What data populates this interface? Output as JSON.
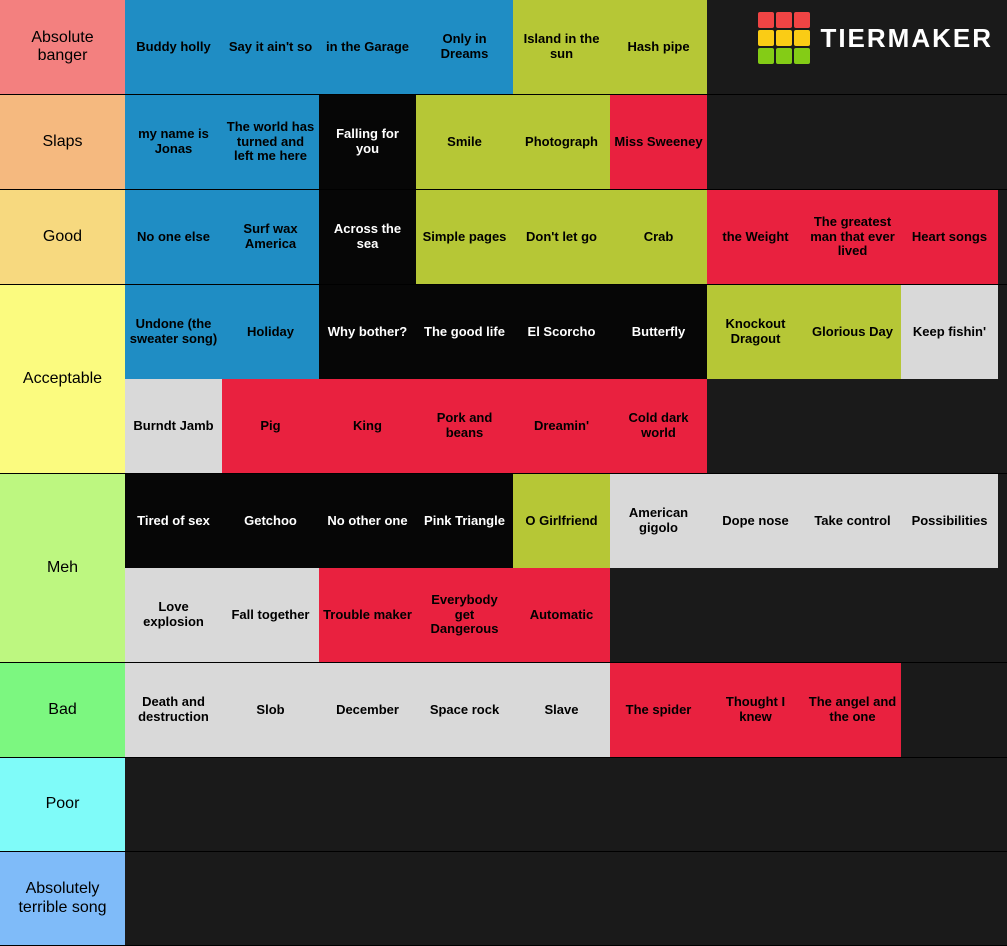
{
  "watermark": {
    "text": "TIERMAKER",
    "grid_colors": [
      "#ef4444",
      "#ef4444",
      "#ef4444",
      "#facc15",
      "#facc15",
      "#facc15",
      "#84cc16",
      "#84cc16",
      "#84cc16"
    ]
  },
  "item_colors": {
    "blue": "#1f8dc4",
    "olive": "#b6c736",
    "black": "#060606",
    "red": "#e9213f",
    "grey": "#d9d9d9"
  },
  "rows": [
    {
      "label": "Absolute banger",
      "label_color": "#f3807f",
      "items": [
        {
          "text": "Buddy holly",
          "c": "blue"
        },
        {
          "text": "Say it ain't so",
          "c": "blue"
        },
        {
          "text": "in the Garage",
          "c": "blue"
        },
        {
          "text": "Only in Dreams",
          "c": "blue"
        },
        {
          "text": "Island in the sun",
          "c": "olive"
        },
        {
          "text": "Hash pipe",
          "c": "olive"
        }
      ]
    },
    {
      "label": "Slaps",
      "label_color": "#f5b97f",
      "items": [
        {
          "text": "my name is Jonas",
          "c": "blue"
        },
        {
          "text": "The world has turned and left me here",
          "c": "blue"
        },
        {
          "text": "Falling for you",
          "c": "black"
        },
        {
          "text": "Smile",
          "c": "olive"
        },
        {
          "text": "Photograph",
          "c": "olive"
        },
        {
          "text": "Miss Sweeney",
          "c": "red"
        }
      ]
    },
    {
      "label": "Good",
      "label_color": "#f7d97f",
      "items": [
        {
          "text": "No one else",
          "c": "blue"
        },
        {
          "text": "Surf wax America",
          "c": "blue"
        },
        {
          "text": "Across the sea",
          "c": "black"
        },
        {
          "text": "Simple pages",
          "c": "olive"
        },
        {
          "text": "Don't let go",
          "c": "olive"
        },
        {
          "text": "Crab",
          "c": "olive"
        },
        {
          "text": "the Weight",
          "c": "red"
        },
        {
          "text": "The greatest man that ever lived",
          "c": "red"
        },
        {
          "text": "Heart songs",
          "c": "red"
        }
      ]
    },
    {
      "label": "Acceptable",
      "label_color": "#fbfb7f",
      "items": [
        {
          "text": "Undone (the sweater song)",
          "c": "blue"
        },
        {
          "text": "Holiday",
          "c": "blue"
        },
        {
          "text": "Why bother?",
          "c": "black"
        },
        {
          "text": "The good life",
          "c": "black"
        },
        {
          "text": "El Scorcho",
          "c": "black"
        },
        {
          "text": "Butterfly",
          "c": "black"
        },
        {
          "text": "Knockout Dragout",
          "c": "olive"
        },
        {
          "text": "Glorious Day",
          "c": "olive"
        },
        {
          "text": "Keep fishin'",
          "c": "grey"
        },
        {
          "text": "Burndt Jamb",
          "c": "grey"
        },
        {
          "text": "Pig",
          "c": "red"
        },
        {
          "text": "King",
          "c": "red"
        },
        {
          "text": "Pork and beans",
          "c": "red"
        },
        {
          "text": "Dreamin'",
          "c": "red"
        },
        {
          "text": "Cold dark world",
          "c": "red"
        }
      ]
    },
    {
      "label": "Meh",
      "label_color": "#bdf780",
      "items": [
        {
          "text": "Tired of sex",
          "c": "black"
        },
        {
          "text": "Getchoo",
          "c": "black"
        },
        {
          "text": "No other one",
          "c": "black"
        },
        {
          "text": "Pink Triangle",
          "c": "black"
        },
        {
          "text": "O Girlfriend",
          "c": "olive"
        },
        {
          "text": "American gigolo",
          "c": "grey"
        },
        {
          "text": "Dope nose",
          "c": "grey"
        },
        {
          "text": "Take control",
          "c": "grey"
        },
        {
          "text": "Possibilities",
          "c": "grey"
        },
        {
          "text": "Love explosion",
          "c": "grey"
        },
        {
          "text": "Fall together",
          "c": "grey"
        },
        {
          "text": "Trouble maker",
          "c": "red"
        },
        {
          "text": "Everybody get Dangerous",
          "c": "red"
        },
        {
          "text": "Automatic",
          "c": "red"
        }
      ]
    },
    {
      "label": "Bad",
      "label_color": "#7cf780",
      "items": [
        {
          "text": "Death and destruction",
          "c": "grey"
        },
        {
          "text": "Slob",
          "c": "grey"
        },
        {
          "text": "December",
          "c": "grey"
        },
        {
          "text": "Space rock",
          "c": "grey"
        },
        {
          "text": "Slave",
          "c": "grey"
        },
        {
          "text": "The spider",
          "c": "red"
        },
        {
          "text": "Thought I knew",
          "c": "red"
        },
        {
          "text": "The angel and the one",
          "c": "red"
        }
      ]
    },
    {
      "label": "Poor",
      "label_color": "#7ffbf9",
      "items": []
    },
    {
      "label": "Absolutely terrible song",
      "label_color": "#7fbbf9",
      "items": []
    }
  ]
}
